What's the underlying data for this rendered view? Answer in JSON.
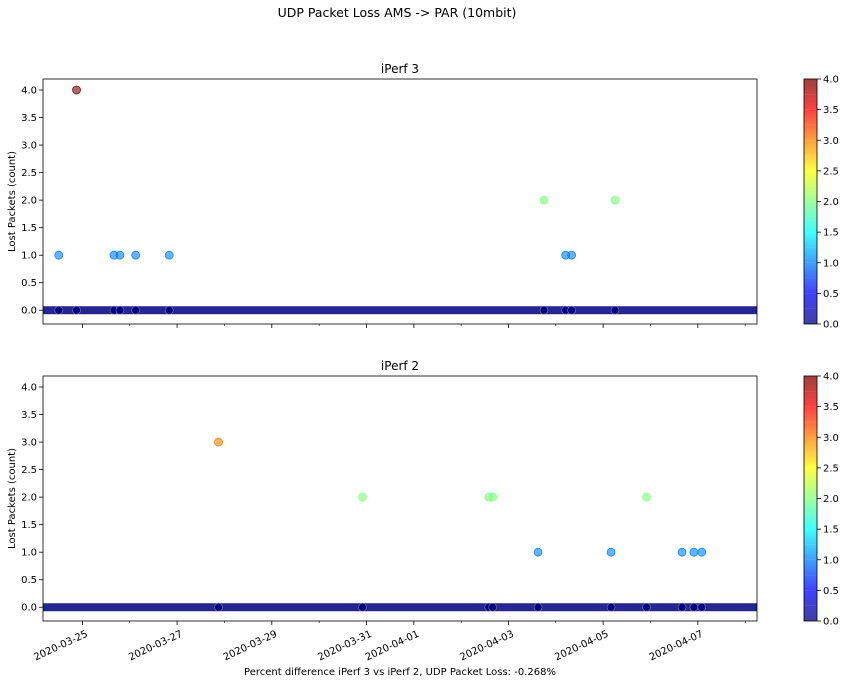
{
  "figure": {
    "suptitle": "UDP Packet Loss AMS -> PAR (10mbit)",
    "footer": "Percent difference iPerf 3 vs iPerf 2, UDP Packet Loss: -0.268%"
  },
  "colormap": {
    "name": "jet",
    "stops": [
      "#00007f",
      "#0000ff",
      "#007fff",
      "#00ffff",
      "#7fff7f",
      "#ffff00",
      "#ff7f00",
      "#ff0000",
      "#7f0000"
    ],
    "min": 0,
    "max": 4,
    "ticks": [
      0.0,
      0.5,
      1.0,
      1.5,
      2.0,
      2.5,
      3.0,
      3.5,
      4.0
    ],
    "tick_labels": [
      "0.0",
      "0.5",
      "1.0",
      "1.5",
      "2.0",
      "2.5",
      "3.0",
      "3.5",
      "4.0"
    ],
    "point_alpha": 0.55
  },
  "x_axis": {
    "start": "2020-03-24T04:00",
    "end": "2020-04-08T06:00",
    "tick_dates": [
      "2020-03-25",
      "2020-03-27",
      "2020-03-29",
      "2020-03-31",
      "2020-04-01",
      "2020-04-03",
      "2020-04-05",
      "2020-04-07"
    ],
    "tick_labels": [
      "2020-03-25",
      "2020-03-27",
      "2020-03-29",
      "2020-03-31",
      "2020-04-01",
      "2020-04-03",
      "2020-04-05",
      "2020-04-07"
    ],
    "minor_tick_dates": [
      "2020-03-26",
      "2020-03-28",
      "2020-03-30",
      "2020-04-02",
      "2020-04-04",
      "2020-04-06",
      "2020-04-08"
    ]
  },
  "chart_data": [
    {
      "type": "scatter",
      "title": "iPerf 3",
      "ylabel": "Lost Packets (count)",
      "ylim": [
        -0.25,
        4.2
      ],
      "yticks": [
        0.0,
        0.5,
        1.0,
        1.5,
        2.0,
        2.5,
        3.0,
        3.5,
        4.0
      ],
      "ytick_labels": [
        "0.0",
        "0.5",
        "1.0",
        "1.5",
        "2.0",
        "2.5",
        "3.0",
        "3.5",
        "4.0"
      ],
      "baseline_value": 0,
      "baseline_range": [
        "2020-03-24T04:00",
        "2020-04-08T06:00"
      ],
      "points": [
        {
          "x": "2020-03-24T12:00",
          "y": 1
        },
        {
          "x": "2020-03-24T21:00",
          "y": 4
        },
        {
          "x": "2020-03-25T16:00",
          "y": 1
        },
        {
          "x": "2020-03-25T19:00",
          "y": 1
        },
        {
          "x": "2020-03-26T03:00",
          "y": 1
        },
        {
          "x": "2020-03-26T20:00",
          "y": 1
        },
        {
          "x": "2020-04-03T18:00",
          "y": 2
        },
        {
          "x": "2020-04-04T05:00",
          "y": 1
        },
        {
          "x": "2020-04-04T08:00",
          "y": 1
        },
        {
          "x": "2020-04-05T06:00",
          "y": 2
        }
      ]
    },
    {
      "type": "scatter",
      "title": "iPerf 2",
      "ylabel": "Lost Packets (count)",
      "ylim": [
        -0.25,
        4.2
      ],
      "yticks": [
        0.0,
        0.5,
        1.0,
        1.5,
        2.0,
        2.5,
        3.0,
        3.5,
        4.0
      ],
      "ytick_labels": [
        "0.0",
        "0.5",
        "1.0",
        "1.5",
        "2.0",
        "2.5",
        "3.0",
        "3.5",
        "4.0"
      ],
      "baseline_value": 0,
      "baseline_range": [
        "2020-03-24T04:00",
        "2020-04-08T06:00"
      ],
      "points": [
        {
          "x": "2020-03-27T21:00",
          "y": 3
        },
        {
          "x": "2020-03-30T22:00",
          "y": 2
        },
        {
          "x": "2020-04-02T14:00",
          "y": 2
        },
        {
          "x": "2020-04-02T16:00",
          "y": 2
        },
        {
          "x": "2020-04-03T15:00",
          "y": 1
        },
        {
          "x": "2020-04-05T04:00",
          "y": 1
        },
        {
          "x": "2020-04-05T22:00",
          "y": 2
        },
        {
          "x": "2020-04-06T16:00",
          "y": 1
        },
        {
          "x": "2020-04-06T22:00",
          "y": 1
        },
        {
          "x": "2020-04-07T02:00",
          "y": 1
        }
      ]
    }
  ]
}
